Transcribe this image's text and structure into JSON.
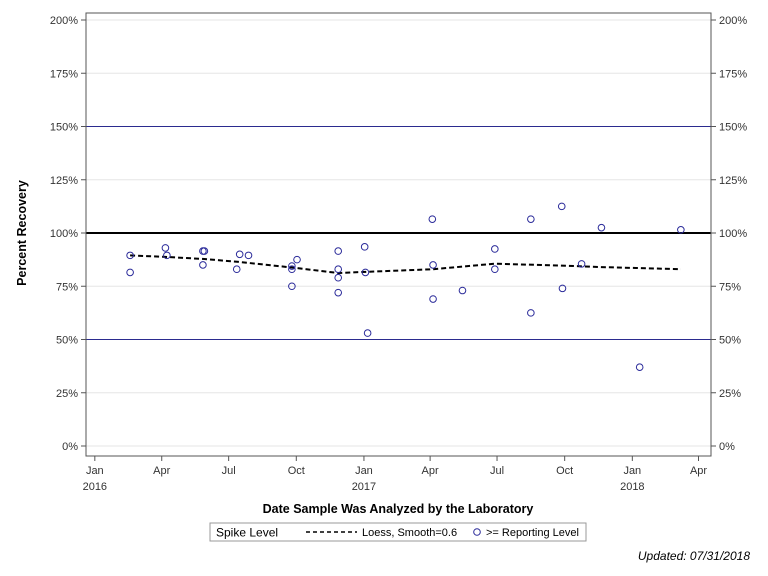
{
  "chart_data": {
    "type": "scatter",
    "xlabel": "Date Sample Was Analyzed by the Laboratory",
    "ylabel": "Percent Recovery",
    "ylim": [
      0,
      200
    ],
    "xlim": [
      "2015-12-20",
      "2018-04-18"
    ],
    "y_ticks": [
      {
        "value": 0,
        "label": "0%"
      },
      {
        "value": 25,
        "label": "25%"
      },
      {
        "value": 50,
        "label": "50%"
      },
      {
        "value": 75,
        "label": "75%"
      },
      {
        "value": 100,
        "label": "100%"
      },
      {
        "value": 125,
        "label": "125%"
      },
      {
        "value": 150,
        "label": "150%"
      },
      {
        "value": 175,
        "label": "175%"
      },
      {
        "value": 200,
        "label": "200%"
      }
    ],
    "x_ticks": [
      {
        "date": "2016-01-01",
        "label": "Jan",
        "year": "2016"
      },
      {
        "date": "2016-04-01",
        "label": "Apr",
        "year": ""
      },
      {
        "date": "2016-07-01",
        "label": "Jul",
        "year": ""
      },
      {
        "date": "2016-10-01",
        "label": "Oct",
        "year": ""
      },
      {
        "date": "2017-01-01",
        "label": "Jan",
        "year": "2017"
      },
      {
        "date": "2017-04-01",
        "label": "Apr",
        "year": ""
      },
      {
        "date": "2017-07-01",
        "label": "Jul",
        "year": ""
      },
      {
        "date": "2017-10-01",
        "label": "Oct",
        "year": ""
      },
      {
        "date": "2018-01-01",
        "label": "Jan",
        "year": "2018"
      },
      {
        "date": "2018-04-01",
        "label": "Apr",
        "year": ""
      }
    ],
    "grid": true,
    "reference_lines": [
      {
        "value": 50,
        "style": "thin",
        "color": "#2b2b8f"
      },
      {
        "value": 100,
        "style": "thick",
        "color": "#000000"
      },
      {
        "value": 150,
        "style": "thin",
        "color": "#2b2b8f"
      }
    ],
    "series": [
      {
        "name": ">= Reporting Level",
        "type": "scatter",
        "color": "#2b2b9a",
        "points": [
          {
            "x": "2016-02-18",
            "y": 89.5
          },
          {
            "x": "2016-02-18",
            "y": 81.5
          },
          {
            "x": "2016-04-06",
            "y": 93
          },
          {
            "x": "2016-04-08",
            "y": 89.5
          },
          {
            "x": "2016-05-27",
            "y": 91.5
          },
          {
            "x": "2016-05-29",
            "y": 91.5
          },
          {
            "x": "2016-05-27",
            "y": 85
          },
          {
            "x": "2016-07-12",
            "y": 83
          },
          {
            "x": "2016-07-16",
            "y": 90
          },
          {
            "x": "2016-07-28",
            "y": 89.5
          },
          {
            "x": "2016-09-25",
            "y": 84.5
          },
          {
            "x": "2016-09-25",
            "y": 83
          },
          {
            "x": "2016-09-25",
            "y": 75
          },
          {
            "x": "2016-10-02",
            "y": 87.5
          },
          {
            "x": "2016-11-27",
            "y": 91.5
          },
          {
            "x": "2016-11-27",
            "y": 83
          },
          {
            "x": "2016-11-27",
            "y": 79
          },
          {
            "x": "2016-11-27",
            "y": 72
          },
          {
            "x": "2017-01-02",
            "y": 93.5
          },
          {
            "x": "2017-01-03",
            "y": 81.5
          },
          {
            "x": "2017-01-06",
            "y": 53
          },
          {
            "x": "2017-04-04",
            "y": 106.5
          },
          {
            "x": "2017-04-05",
            "y": 85
          },
          {
            "x": "2017-04-05",
            "y": 69
          },
          {
            "x": "2017-05-15",
            "y": 73
          },
          {
            "x": "2017-06-28",
            "y": 92.5
          },
          {
            "x": "2017-06-28",
            "y": 83
          },
          {
            "x": "2017-08-16",
            "y": 106.5
          },
          {
            "x": "2017-08-16",
            "y": 62.5
          },
          {
            "x": "2017-09-27",
            "y": 112.5
          },
          {
            "x": "2017-09-28",
            "y": 74
          },
          {
            "x": "2017-10-24",
            "y": 85.5
          },
          {
            "x": "2017-11-20",
            "y": 102.5
          },
          {
            "x": "2018-01-11",
            "y": 37
          },
          {
            "x": "2018-03-08",
            "y": 101.5
          }
        ]
      },
      {
        "name": "Loess, Smooth=0.6",
        "type": "line",
        "style": "dashed",
        "color": "#000000",
        "points": [
          {
            "x": "2016-02-18",
            "y": 89.5
          },
          {
            "x": "2016-04-06",
            "y": 88.8
          },
          {
            "x": "2016-05-29",
            "y": 87.8
          },
          {
            "x": "2016-07-16",
            "y": 86.4
          },
          {
            "x": "2016-09-25",
            "y": 83.8
          },
          {
            "x": "2016-11-27",
            "y": 81.2
          },
          {
            "x": "2017-01-06",
            "y": 81.8
          },
          {
            "x": "2017-04-05",
            "y": 83
          },
          {
            "x": "2017-06-28",
            "y": 85.6
          },
          {
            "x": "2017-09-27",
            "y": 84.7
          },
          {
            "x": "2017-11-20",
            "y": 84
          },
          {
            "x": "2018-01-11",
            "y": 83.5
          },
          {
            "x": "2018-03-08",
            "y": 83
          }
        ]
      }
    ],
    "legend": {
      "title": "Spike Level",
      "placement": "bottom",
      "entries": [
        {
          "label": "Loess, Smooth=0.6",
          "symbol": "dashed-line"
        },
        {
          "label": ">= Reporting Level",
          "symbol": "open-circle"
        }
      ]
    },
    "footnote": "Updated: 07/31/2018"
  }
}
